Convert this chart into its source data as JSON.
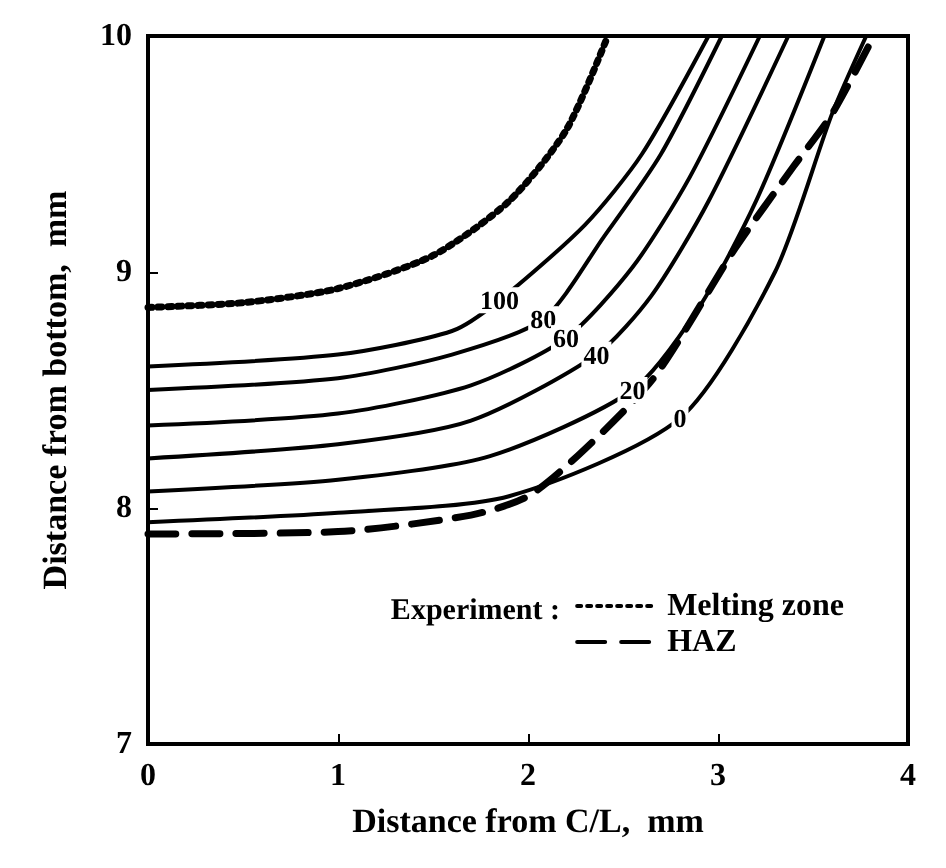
{
  "chart_data": {
    "type": "line",
    "xlabel": "Distance from C/L,  mm",
    "ylabel": "Distance from bottom,  mm",
    "legend_title": "Experiment :",
    "legend": "bottom right",
    "grid": false,
    "marker": "none",
    "xlim": [
      0,
      4
    ],
    "xticks": [
      0,
      1,
      2,
      3,
      4
    ],
    "ylim": [
      7,
      10
    ],
    "yticks": [
      7,
      8,
      9,
      10
    ],
    "series": [
      {
        "name": "Melting zone",
        "color": "#000000",
        "line_style": "dotted",
        "x": [
          0,
          0.5,
          1,
          1.5,
          1.9,
          2.2,
          2.42
        ],
        "values": [
          8.85,
          8.87,
          8.93,
          9.07,
          9.3,
          9.6,
          10
        ]
      },
      {
        "name": "HAZ",
        "color": "#000000",
        "line_style": "dashed",
        "x": [
          0,
          1,
          1.7,
          2.0,
          2.3,
          2.67,
          3.09,
          3.4,
          3.6,
          3.82
        ],
        "values": [
          7.89,
          7.9,
          7.97,
          8.05,
          8.25,
          8.56,
          9.1,
          9.45,
          9.67,
          10
        ]
      },
      {
        "name": "100",
        "color": "#000000",
        "line_style": "solid",
        "x": [
          0,
          1,
          1.6,
          1.85,
          2.3,
          2.6,
          2.95
        ],
        "values": [
          8.6,
          8.65,
          8.75,
          8.88,
          9.2,
          9.5,
          10
        ]
      },
      {
        "name": "80",
        "color": "#000000",
        "line_style": "solid",
        "x": [
          0,
          1,
          1.6,
          2.08,
          2.4,
          2.7,
          3.02
        ],
        "values": [
          8.5,
          8.55,
          8.65,
          8.8,
          9.15,
          9.5,
          10
        ]
      },
      {
        "name": "60",
        "color": "#000000",
        "line_style": "solid",
        "x": [
          0,
          1,
          1.7,
          2.2,
          2.55,
          2.85,
          3.22
        ],
        "values": [
          8.35,
          8.4,
          8.52,
          8.72,
          9.02,
          9.4,
          10
        ]
      },
      {
        "name": "40",
        "color": "#000000",
        "line_style": "solid",
        "x": [
          0,
          1,
          1.7,
          2.36,
          2.65,
          2.95,
          3.37
        ],
        "values": [
          8.21,
          8.27,
          8.37,
          8.65,
          8.9,
          9.3,
          10
        ]
      },
      {
        "name": "20",
        "color": "#000000",
        "line_style": "solid",
        "x": [
          0,
          1,
          1.8,
          2.55,
          2.9,
          3.2,
          3.56
        ],
        "values": [
          8.07,
          8.12,
          8.22,
          8.5,
          8.85,
          9.3,
          10
        ]
      },
      {
        "name": "0",
        "color": "#000000",
        "line_style": "solid",
        "x": [
          0,
          1,
          1.9,
          2.8,
          3.3,
          3.6,
          3.78
        ],
        "values": [
          7.94,
          7.98,
          8.05,
          8.38,
          9.0,
          9.67,
          10
        ]
      }
    ]
  }
}
